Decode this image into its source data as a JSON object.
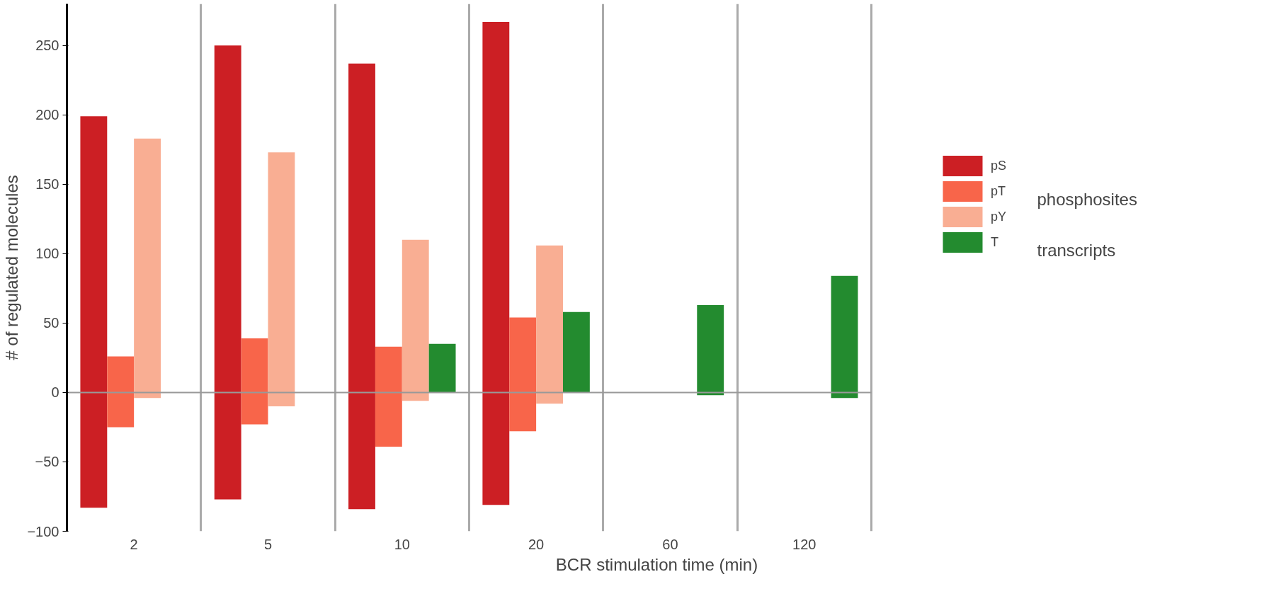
{
  "chart_data": {
    "type": "bar",
    "xlabel": "BCR stimulation time (min)",
    "ylabel": "# of regulated molecules",
    "categories": [
      "2",
      "5",
      "10",
      "20",
      "60",
      "120"
    ],
    "series": [
      {
        "name": "pS",
        "color": "#cc1f24",
        "base": [
          -83,
          -77,
          -84,
          -81,
          null,
          null
        ],
        "values": [
          282,
          327,
          321,
          348,
          null,
          null
        ]
      },
      {
        "name": "pT",
        "color": "#f8654a",
        "base": [
          -25,
          -23,
          -39,
          -28,
          null,
          null
        ],
        "values": [
          51,
          62,
          72,
          82,
          null,
          null
        ]
      },
      {
        "name": "pY",
        "color": "#f9ae93",
        "base": [
          -4,
          -10,
          -6,
          -8,
          null,
          null
        ],
        "values": [
          187,
          183,
          116,
          114,
          null,
          null
        ]
      },
      {
        "name": "T",
        "color": "#238b2f",
        "base": [
          null,
          null,
          0,
          0,
          -2,
          -4
        ],
        "values": [
          null,
          null,
          35,
          58,
          65,
          88
        ]
      }
    ],
    "ylim": [
      -100,
      280
    ],
    "yticks": [
      -100,
      -50,
      0,
      50,
      100,
      150,
      200,
      250
    ],
    "ref_lines": [
      {
        "axis": "y",
        "value": 0,
        "color": "#999999"
      }
    ],
    "grid": "x",
    "legend": "right",
    "annotations": [
      "phosphosites",
      "transcripts"
    ]
  }
}
